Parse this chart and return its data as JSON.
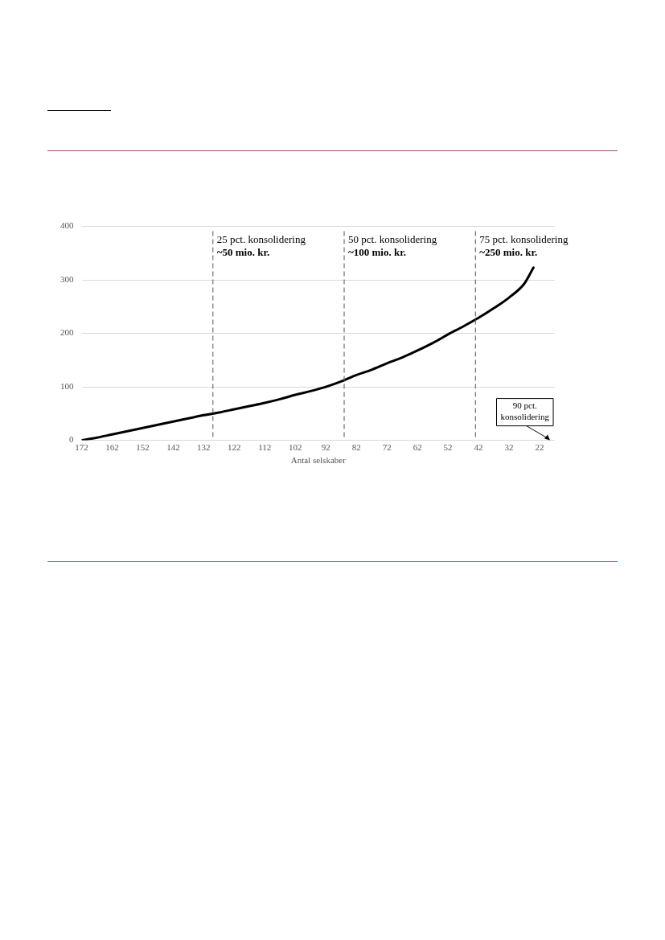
{
  "chart_data": {
    "type": "line",
    "xlabel": "Antal selskaber",
    "x": [
      172,
      167,
      162,
      157,
      152,
      147,
      142,
      137,
      132,
      127,
      122,
      117,
      112,
      107,
      102,
      97,
      92,
      87,
      82,
      77,
      72,
      67,
      62,
      57,
      52,
      47,
      42,
      37,
      32,
      27,
      24
    ],
    "series": [
      {
        "color": "#000000",
        "values": [
          0,
          5,
          11,
          17,
          23,
          29,
          35,
          41,
          47,
          52,
          58,
          64,
          70,
          77,
          85,
          92,
          100,
          110,
          122,
          132,
          144,
          155,
          168,
          182,
          198,
          213,
          229,
          247,
          267,
          293,
          323
        ]
      }
    ],
    "xlim": [
      172,
      17
    ],
    "xticks": [
      172,
      162,
      152,
      142,
      132,
      122,
      112,
      102,
      92,
      82,
      72,
      62,
      52,
      42,
      32,
      22
    ],
    "ylim": [
      0,
      400
    ],
    "yticks": [
      0,
      100,
      200,
      300,
      400
    ],
    "grid": "y",
    "legend": false,
    "marker": "none",
    "line_style": "solid",
    "ref_lines": [
      {
        "axis": "x",
        "value": 129,
        "label": "25 pct. konsolidering\n~50 mio. kr.",
        "color": "#707070",
        "line_style": "dashed"
      },
      {
        "axis": "x",
        "value": 86,
        "label": "50 pct. konsolidering\n~100 mio. kr.",
        "color": "#707070",
        "line_style": "dashed"
      },
      {
        "axis": "x",
        "value": 43,
        "label": "75 pct. konsolidering\n~250 mio. kr.",
        "color": "#707070",
        "line_style": "dashed"
      }
    ],
    "annotations": [
      "90 pct.\nkonsolidering"
    ]
  }
}
